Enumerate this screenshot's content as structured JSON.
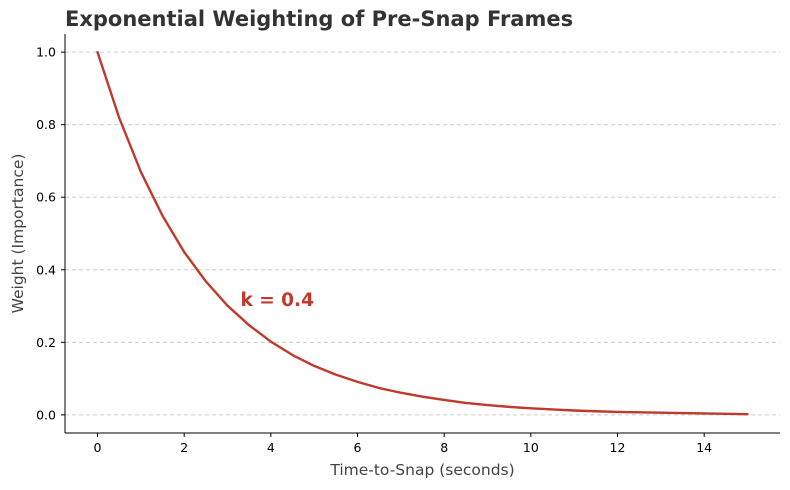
{
  "chart_data": {
    "type": "line",
    "title": "Exponential Weighting of Pre-Snap Frames",
    "xlabel": "Time-to-Snap (seconds)",
    "ylabel": "Weight (Importance)",
    "xlim": [
      -0.75,
      15.75
    ],
    "ylim": [
      -0.05,
      1.05
    ],
    "x_ticks": [
      0,
      2,
      4,
      6,
      8,
      10,
      12,
      14
    ],
    "y_ticks": [
      0.0,
      0.2,
      0.4,
      0.6,
      0.8,
      1.0
    ],
    "x_tick_labels": [
      "0",
      "2",
      "4",
      "6",
      "8",
      "10",
      "12",
      "14"
    ],
    "y_tick_labels": [
      "0.0",
      "0.2",
      "0.4",
      "0.6",
      "0.8",
      "1.0"
    ],
    "grid": "horizontal-dashed",
    "line_color": "#c0392b",
    "series": [
      {
        "x": [
          0,
          0.5,
          1,
          1.5,
          2,
          2.5,
          3,
          3.5,
          4,
          4.5,
          5,
          5.5,
          6,
          6.5,
          7,
          7.5,
          8,
          8.5,
          9,
          9.5,
          10,
          10.5,
          11,
          11.5,
          12,
          12.5,
          13,
          13.5,
          14,
          14.5,
          15
        ],
        "values": [
          1.0,
          0.819,
          0.67,
          0.549,
          0.449,
          0.368,
          0.301,
          0.247,
          0.202,
          0.165,
          0.135,
          0.111,
          0.091,
          0.074,
          0.061,
          0.05,
          0.041,
          0.033,
          0.027,
          0.022,
          0.018,
          0.015,
          0.012,
          0.01,
          0.008,
          0.007,
          0.006,
          0.005,
          0.004,
          0.003,
          0.002
        ]
      }
    ],
    "annotations": [
      {
        "text": "k = 0.4",
        "x": 3.3,
        "y": 0.3
      }
    ]
  }
}
